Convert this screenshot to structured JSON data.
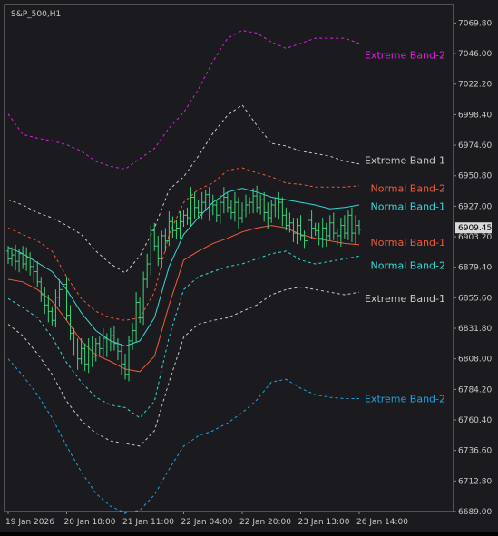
{
  "window": {
    "symbol_label": "S&P_500,H1"
  },
  "colors": {
    "background": "#1b1b1f",
    "axis": "#8a8a8a",
    "candle": "#3ed17a",
    "extreme_upper_2": "#e21ce8",
    "extreme_upper_1": "#c8c8c8",
    "normal_upper_2": "#f05a3a",
    "normal_upper_1": "#35d8d8",
    "normal_lower_1": "#f05a3a",
    "normal_lower_2": "#35d8d8",
    "extreme_lower_1": "#c8c8c8",
    "extreme_lower_2": "#1aa6e0",
    "price_tag_bg": "#d8d8d8",
    "price_tag_text": "#000000"
  },
  "chart_data": {
    "type": "line",
    "ylim": [
      6689.0,
      7080.0
    ],
    "y_ticks": [
      "7069.80",
      "7046.00",
      "7022.20",
      "6998.40",
      "6974.60",
      "6950.80",
      "6927.00",
      "6903.20",
      "6879.40",
      "6855.60",
      "6831.80",
      "6808.00",
      "6784.20",
      "6760.40",
      "6736.60",
      "6712.80",
      "6689.00"
    ],
    "x_ticks": [
      "19 Jan 2026",
      "20 Jan 18:00",
      "21 Jan 11:00",
      "22 Jan 04:00",
      "22 Jan 20:00",
      "23 Jan 13:00",
      "26 Jan 14:00"
    ],
    "x_tick_positions": [
      0,
      16,
      32,
      48,
      64,
      80,
      96
    ],
    "last_price": "6909.45",
    "series": [
      {
        "name": "Extreme Band-2",
        "key": "extreme_upper_2",
        "style": "dashed",
        "x": [
          0,
          4,
          8,
          12,
          16,
          20,
          24,
          28,
          32,
          36,
          40,
          44,
          48,
          52,
          56,
          60,
          64,
          68,
          72,
          76,
          80,
          84,
          88,
          92,
          96
        ],
        "y": [
          6999,
          6983,
          6980,
          6978,
          6975,
          6970,
          6962,
          6958,
          6956,
          6964,
          6972,
          6988,
          7000,
          7018,
          7040,
          7058,
          7064,
          7062,
          7055,
          7050,
          7054,
          7058,
          7058,
          7058,
          7054
        ]
      },
      {
        "name": "Extreme Band-1",
        "key": "extreme_upper_1",
        "style": "dashed",
        "x": [
          0,
          4,
          8,
          12,
          16,
          20,
          24,
          28,
          32,
          36,
          40,
          44,
          48,
          52,
          56,
          60,
          64,
          68,
          72,
          76,
          80,
          84,
          88,
          92,
          96
        ],
        "y": [
          6932,
          6928,
          6922,
          6918,
          6912,
          6905,
          6892,
          6882,
          6875,
          6888,
          6910,
          6940,
          6950,
          6966,
          6984,
          6998,
          7006,
          6990,
          6976,
          6974,
          6970,
          6968,
          6966,
          6962,
          6960
        ]
      },
      {
        "name": "Normal Band-2",
        "key": "normal_upper_2",
        "style": "dashed",
        "x": [
          0,
          4,
          8,
          12,
          16,
          20,
          24,
          28,
          32,
          36,
          40,
          44,
          48,
          52,
          56,
          60,
          64,
          68,
          72,
          76,
          80,
          84,
          88,
          92,
          96
        ],
        "y": [
          6910,
          6905,
          6900,
          6892,
          6872,
          6855,
          6845,
          6840,
          6838,
          6840,
          6860,
          6905,
          6930,
          6940,
          6945,
          6955,
          6957,
          6953,
          6950,
          6945,
          6944,
          6942,
          6942,
          6942,
          6943
        ]
      },
      {
        "name": "Normal Band-1",
        "key": "normal_upper_1",
        "style": "solid",
        "x": [
          0,
          4,
          8,
          12,
          16,
          20,
          24,
          28,
          32,
          36,
          40,
          44,
          48,
          52,
          56,
          60,
          64,
          68,
          72,
          76,
          80,
          84,
          88,
          92,
          96
        ],
        "y": [
          6895,
          6890,
          6883,
          6876,
          6862,
          6844,
          6830,
          6822,
          6818,
          6822,
          6840,
          6880,
          6905,
          6918,
          6930,
          6938,
          6941,
          6938,
          6934,
          6932,
          6930,
          6928,
          6925,
          6926,
          6928
        ]
      },
      {
        "name": "Normal Band-1",
        "key": "normal_lower_1",
        "style": "solid",
        "x": [
          0,
          4,
          8,
          12,
          16,
          20,
          24,
          28,
          32,
          36,
          40,
          44,
          48,
          52,
          56,
          60,
          64,
          68,
          72,
          76,
          80,
          84,
          88,
          92,
          96
        ],
        "y": [
          6870,
          6868,
          6862,
          6853,
          6838,
          6822,
          6811,
          6806,
          6800,
          6798,
          6810,
          6850,
          6885,
          6892,
          6898,
          6902,
          6907,
          6910,
          6912,
          6910,
          6905,
          6902,
          6900,
          6898,
          6897
        ]
      },
      {
        "name": "Normal Band-2",
        "key": "normal_lower_2",
        "style": "dashed",
        "x": [
          0,
          4,
          8,
          12,
          16,
          20,
          24,
          28,
          32,
          36,
          40,
          44,
          48,
          52,
          56,
          60,
          64,
          68,
          72,
          76,
          80,
          84,
          88,
          92,
          96
        ],
        "y": [
          6855,
          6848,
          6840,
          6825,
          6805,
          6790,
          6778,
          6772,
          6770,
          6762,
          6775,
          6825,
          6862,
          6872,
          6876,
          6880,
          6882,
          6886,
          6890,
          6892,
          6885,
          6882,
          6884,
          6886,
          6888
        ]
      },
      {
        "name": "Extreme Band-1",
        "key": "extreme_lower_1",
        "style": "dashed",
        "x": [
          0,
          4,
          8,
          12,
          16,
          20,
          24,
          28,
          32,
          36,
          40,
          44,
          48,
          52,
          56,
          60,
          64,
          68,
          72,
          76,
          80,
          84,
          88,
          92,
          96
        ],
        "y": [
          6835,
          6826,
          6812,
          6796,
          6775,
          6760,
          6750,
          6744,
          6742,
          6740,
          6752,
          6790,
          6825,
          6835,
          6838,
          6840,
          6845,
          6850,
          6858,
          6862,
          6864,
          6862,
          6860,
          6858,
          6860
        ]
      },
      {
        "name": "Extreme Band-2",
        "key": "extreme_lower_2",
        "style": "dashed",
        "x": [
          0,
          4,
          8,
          12,
          16,
          20,
          24,
          28,
          32,
          36,
          40,
          44,
          48,
          52,
          56,
          60,
          64,
          68,
          72,
          76,
          80,
          84,
          88,
          92,
          96
        ],
        "y": [
          6808,
          6795,
          6780,
          6762,
          6740,
          6720,
          6703,
          6693,
          6688,
          6690,
          6702,
          6722,
          6740,
          6748,
          6752,
          6758,
          6766,
          6776,
          6790,
          6792,
          6785,
          6780,
          6778,
          6777,
          6777
        ]
      }
    ],
    "candles": {
      "x": [
        0,
        1,
        2,
        3,
        4,
        5,
        6,
        7,
        8,
        9,
        10,
        11,
        12,
        13,
        14,
        15,
        16,
        17,
        18,
        19,
        20,
        21,
        22,
        23,
        24,
        25,
        26,
        27,
        28,
        29,
        30,
        31,
        32,
        33,
        34,
        35,
        36,
        37,
        38,
        39,
        40,
        41,
        42,
        43,
        44,
        45,
        46,
        47,
        48,
        49,
        50,
        51,
        52,
        53,
        54,
        55,
        56,
        57,
        58,
        59,
        60,
        61,
        62,
        63,
        64,
        65,
        66,
        67,
        68,
        69,
        70,
        71,
        72,
        73,
        74,
        75,
        76,
        77,
        78,
        79,
        80,
        81,
        82,
        83,
        84,
        85,
        86,
        87,
        88,
        89,
        90,
        91,
        92,
        93,
        94,
        95,
        96
      ],
      "o": [
        6892,
        6886,
        6889,
        6884,
        6890,
        6882,
        6887,
        6880,
        6876,
        6868,
        6858,
        6850,
        6845,
        6838,
        6856,
        6862,
        6866,
        6842,
        6828,
        6818,
        6808,
        6816,
        6804,
        6818,
        6810,
        6820,
        6816,
        6824,
        6818,
        6826,
        6820,
        6814,
        6804,
        6796,
        6822,
        6830,
        6852,
        6840,
        6870,
        6882,
        6908,
        6896,
        6886,
        6904,
        6900,
        6915,
        6908,
        6910,
        6915,
        6920,
        6918,
        6934,
        6926,
        6922,
        6930,
        6936,
        6924,
        6928,
        6920,
        6930,
        6934,
        6926,
        6922,
        6930,
        6918,
        6924,
        6928,
        6930,
        6935,
        6926,
        6932,
        6922,
        6918,
        6928,
        6924,
        6930,
        6920,
        6912,
        6914,
        6906,
        6912,
        6904,
        6900,
        6916,
        6910,
        6908,
        6902,
        6910,
        6904,
        6914,
        6906,
        6904,
        6912,
        6906,
        6920,
        6906,
        6912
      ],
      "c": [
        6886,
        6889,
        6884,
        6890,
        6882,
        6887,
        6880,
        6876,
        6868,
        6858,
        6850,
        6845,
        6838,
        6856,
        6862,
        6866,
        6842,
        6828,
        6818,
        6808,
        6816,
        6804,
        6818,
        6810,
        6820,
        6816,
        6824,
        6818,
        6826,
        6820,
        6814,
        6804,
        6796,
        6822,
        6830,
        6852,
        6840,
        6870,
        6882,
        6908,
        6896,
        6886,
        6904,
        6900,
        6915,
        6908,
        6910,
        6915,
        6920,
        6918,
        6934,
        6926,
        6922,
        6930,
        6936,
        6924,
        6928,
        6920,
        6930,
        6934,
        6926,
        6922,
        6930,
        6918,
        6924,
        6928,
        6930,
        6935,
        6926,
        6932,
        6922,
        6918,
        6928,
        6924,
        6930,
        6920,
        6912,
        6914,
        6906,
        6912,
        6904,
        6900,
        6916,
        6910,
        6908,
        6902,
        6910,
        6904,
        6914,
        6906,
        6904,
        6912,
        6906,
        6920,
        6906,
        6912,
        6909
      ]
    },
    "band_labels": [
      {
        "text": "Extreme Band-2",
        "key": "extreme_upper_2",
        "price": 7045
      },
      {
        "text": "Extreme Band-1",
        "key": "extreme_upper_1",
        "price": 6963
      },
      {
        "text": "Normal Band-2",
        "key": "normal_upper_2",
        "price": 6941
      },
      {
        "text": "Normal Band-1",
        "key": "normal_upper_1",
        "price": 6927
      },
      {
        "text": "Normal Band-1",
        "key": "normal_lower_1",
        "price": 6899
      },
      {
        "text": "Normal Band-2",
        "key": "normal_lower_2",
        "price": 6881
      },
      {
        "text": "Extreme Band-1",
        "key": "extreme_lower_1",
        "price": 6855
      },
      {
        "text": "Extreme Band-2",
        "key": "extreme_lower_2",
        "price": 6777
      }
    ],
    "grid": false,
    "legend": "none"
  }
}
